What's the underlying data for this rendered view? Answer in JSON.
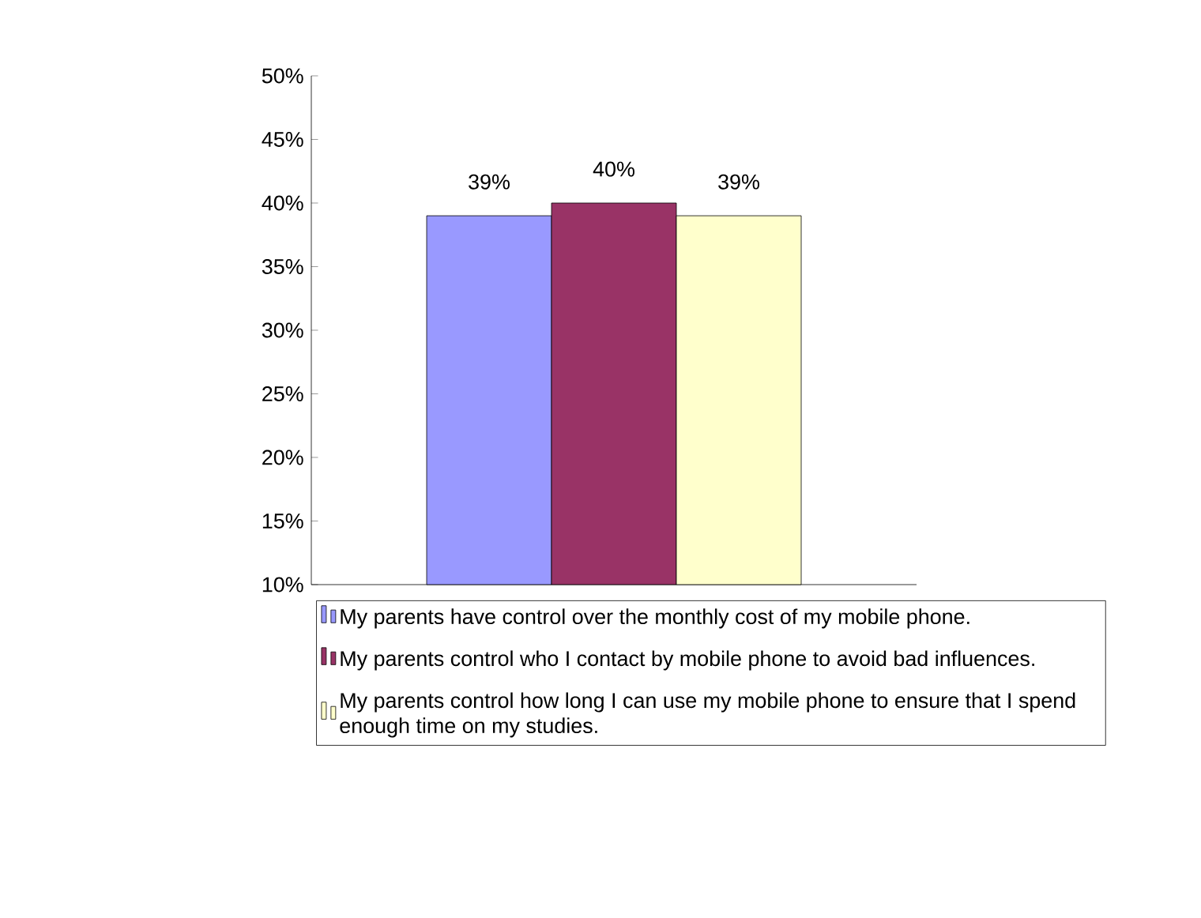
{
  "chart_data": {
    "type": "bar",
    "categories": [
      null
    ],
    "series": [
      {
        "name": "My parents have control over the monthly cost of my mobile phone.",
        "color": "#9999ff",
        "values": [
          39
        ],
        "value_labels": [
          "39%"
        ]
      },
      {
        "name": "My parents control who I contact by mobile phone to avoid bad influences.",
        "color": "#993366",
        "values": [
          40
        ],
        "value_labels": [
          "40%"
        ]
      },
      {
        "name": "My parents control how long I can use my mobile phone to ensure that I spend enough time on my studies.",
        "color": "#ffffcc",
        "values": [
          39
        ],
        "value_labels": [
          "39%"
        ]
      }
    ],
    "ylim": [
      10,
      50
    ],
    "yticks": [
      {
        "value": 10,
        "label": "10%"
      },
      {
        "value": 15,
        "label": "15%"
      },
      {
        "value": 20,
        "label": "20%"
      },
      {
        "value": 25,
        "label": "25%"
      },
      {
        "value": 30,
        "label": "30%"
      },
      {
        "value": 35,
        "label": "35%"
      },
      {
        "value": 40,
        "label": "40%"
      },
      {
        "value": 45,
        "label": "45%"
      },
      {
        "value": 50,
        "label": "50%"
      }
    ],
    "legend": "bottom"
  }
}
